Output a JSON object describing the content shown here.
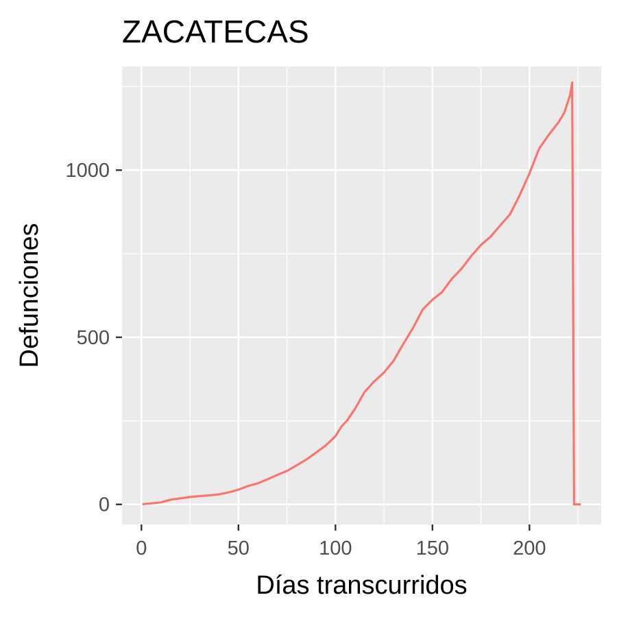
{
  "chart_data": {
    "type": "line",
    "title": "ZACATECAS",
    "xlabel": "Días transcurridos",
    "ylabel": "Defunciones",
    "xlim": [
      -10,
      237
    ],
    "ylim": [
      -60,
      1310
    ],
    "x_ticks": [
      0,
      50,
      100,
      150,
      200
    ],
    "y_ticks": [
      0,
      500,
      1000
    ],
    "x_tick_labels": [
      "0",
      "50",
      "100",
      "150",
      "200"
    ],
    "y_tick_labels": [
      "0",
      "500",
      "1000"
    ],
    "grid": true,
    "legend": "none",
    "colors": {
      "panel": "#ebebeb",
      "grid": "#ffffff",
      "line": "#f8766d",
      "tick": "#333333"
    },
    "series": [
      {
        "color": "#f8766d",
        "x": [
          1,
          5,
          10,
          15,
          20,
          25,
          30,
          35,
          40,
          45,
          50,
          55,
          60,
          65,
          70,
          75,
          80,
          85,
          90,
          95,
          100,
          103,
          106,
          110,
          115,
          120,
          125,
          130,
          135,
          140,
          145,
          150,
          155,
          160,
          165,
          170,
          175,
          180,
          185,
          190,
          195,
          200,
          205,
          210,
          215,
          218,
          221,
          222,
          223,
          226
        ],
        "y": [
          1,
          3,
          6,
          14,
          18,
          22,
          25,
          27,
          30,
          36,
          44,
          55,
          63,
          75,
          88,
          100,
          117,
          134,
          155,
          176,
          204,
          232,
          251,
          285,
          336,
          368,
          394,
          430,
          480,
          528,
          583,
          612,
          635,
          675,
          705,
          743,
          776,
          801,
          835,
          868,
          925,
          990,
          1064,
          1106,
          1143,
          1172,
          1225,
          1262,
          0,
          0
        ]
      }
    ]
  }
}
